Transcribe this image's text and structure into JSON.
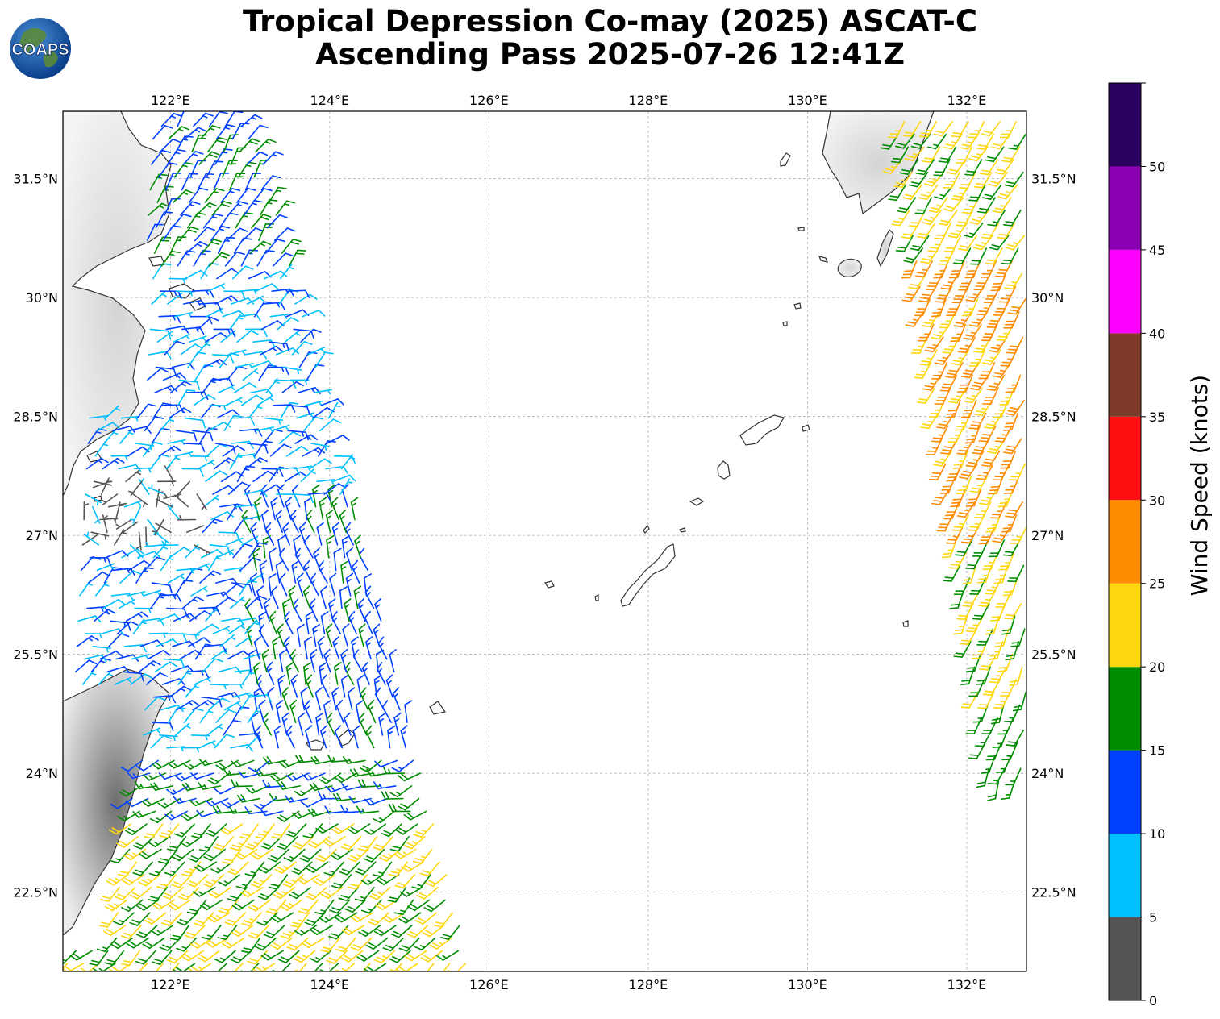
{
  "title": {
    "line1": "Tropical Depression Co-may (2025) ASCAT-C",
    "line2": "Ascending Pass 2025-07-26 12:41Z"
  },
  "logo": {
    "text": "COAPS"
  },
  "map": {
    "lon_range": [
      120.65,
      132.75
    ],
    "lat_range": [
      21.5,
      32.35
    ],
    "lon_ticks": [
      122,
      124,
      126,
      128,
      130,
      132
    ],
    "lon_tick_labels": [
      "122°E",
      "124°E",
      "126°E",
      "128°E",
      "130°E",
      "132°E"
    ],
    "lat_ticks": [
      22.5,
      24,
      25.5,
      27,
      28.5,
      30,
      31.5
    ],
    "lat_tick_labels": [
      "22.5°N",
      "24°N",
      "25.5°N",
      "27°N",
      "28.5°N",
      "30°N",
      "31.5°N"
    ],
    "grid": true
  },
  "colorbar": {
    "label": "Wind Speed (knots)",
    "bounds": [
      0,
      5,
      10,
      15,
      20,
      25,
      30,
      35,
      40,
      45,
      50,
      55
    ],
    "tick_labels": [
      "0",
      "5",
      "10",
      "15",
      "20",
      "25",
      "30",
      "35",
      "40",
      "45",
      "50"
    ],
    "colors": [
      "#555555",
      "#00bfff",
      "#0040ff",
      "#008c00",
      "#ffd710",
      "#ff8c00",
      "#ff1010",
      "#7f3a2a",
      "#ff00ff",
      "#8c00b4",
      "#2a0060"
    ]
  },
  "chart_data": {
    "type": "wind-barb-map",
    "units": "knots",
    "swaths": [
      {
        "name": "west swath",
        "lon_range": [
          120.7,
          125.8
        ],
        "lat_range": [
          21.5,
          32.35
        ],
        "speed_range_kt": [
          0,
          24
        ],
        "direction_from_deg_approx": 45
      },
      {
        "name": "east swath",
        "lon_range": [
          131.2,
          132.75
        ],
        "lat_range": [
          23.8,
          32.35
        ],
        "speed_range_kt": [
          15,
          30
        ],
        "direction_from_deg_approx": 200
      }
    ],
    "samples": [
      {
        "lon": 122.5,
        "lat": 31.0,
        "speed_kt": 12,
        "dir_deg": 30
      },
      {
        "lon": 122.2,
        "lat": 27.4,
        "speed_kt": 3,
        "dir_deg": 20
      },
      {
        "lon": 123.3,
        "lat": 26.5,
        "speed_kt": 13,
        "dir_deg": 340
      },
      {
        "lon": 122.6,
        "lat": 24.8,
        "speed_kt": 7,
        "dir_deg": 60
      },
      {
        "lon": 124.0,
        "lat": 22.6,
        "speed_kt": 22,
        "dir_deg": 225
      },
      {
        "lon": 132.2,
        "lat": 29.0,
        "speed_kt": 27,
        "dir_deg": 200
      },
      {
        "lon": 132.2,
        "lat": 31.2,
        "speed_kt": 22,
        "dir_deg": 210
      }
    ]
  }
}
